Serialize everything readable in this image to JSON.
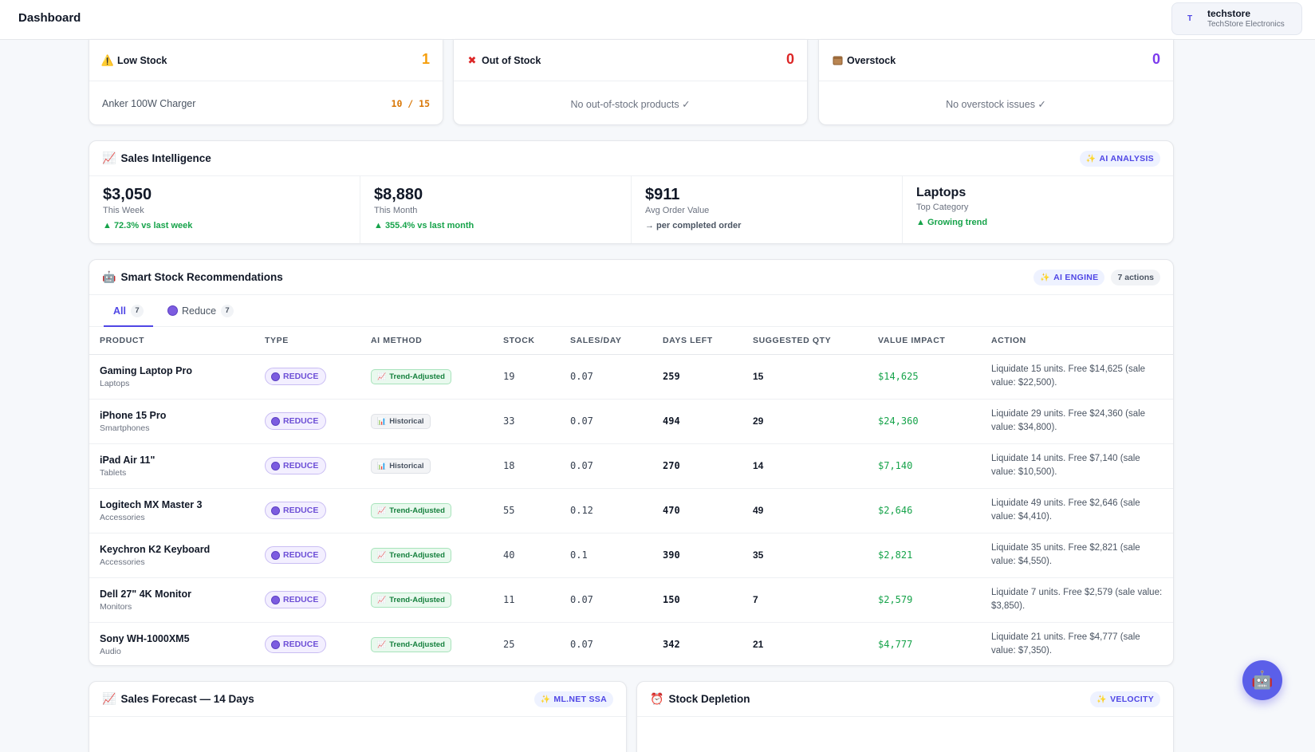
{
  "header": {
    "title": "Dashboard",
    "account": {
      "initial": "T",
      "name": "techstore",
      "org": "TechStore Electronics"
    }
  },
  "alerts": {
    "low_stock": {
      "icon": "warning-icon",
      "label": "Low Stock",
      "count": "1",
      "item_name": "Anker 100W Charger",
      "item_ratio": "10 / 15",
      "color": "#f59e0b"
    },
    "out_of_stock": {
      "icon": "cross-icon",
      "label": "Out of Stock",
      "count": "0",
      "empty_text": "No out-of-stock products ✓",
      "color": "#dc2626"
    },
    "overstock": {
      "icon": "box-icon",
      "label": "Overstock",
      "count": "0",
      "empty_text": "No overstock issues ✓",
      "color": "#7c3aed"
    }
  },
  "sales_intel": {
    "title": "Sales Intelligence",
    "badge": "AI ANALYSIS",
    "kpis": [
      {
        "value": "$3,050",
        "label": "This Week",
        "trend": "▲ 72.3% vs last week"
      },
      {
        "value": "$8,880",
        "label": "This Month",
        "trend": "▲ 355.4% vs last month"
      },
      {
        "value": "$911",
        "label": "Avg Order Value",
        "trend": "→ per completed order"
      },
      {
        "value": "Laptops",
        "label": "Top Category",
        "trend": "▲ Growing trend"
      }
    ]
  },
  "recommendations": {
    "title": "Smart Stock Recommendations",
    "badge_engine": "AI ENGINE",
    "badge_actions": "7 actions",
    "tabs": [
      {
        "label": "All",
        "count": "7"
      },
      {
        "label": "Reduce",
        "count": "7"
      }
    ],
    "columns": [
      "PRODUCT",
      "TYPE",
      "AI METHOD",
      "STOCK",
      "SALES/DAY",
      "DAYS LEFT",
      "SUGGESTED QTY",
      "VALUE IMPACT",
      "ACTION"
    ],
    "rows": [
      {
        "name": "Gaming Laptop Pro",
        "category": "Laptops",
        "type": "REDUCE",
        "method": "Trend-Adjusted",
        "method_kind": "trend",
        "stock": "19",
        "sales_day": "0.07",
        "days_left": "259",
        "qty": "15",
        "impact": "$14,625",
        "action": "Liquidate 15 units. Free $14,625 (sale value: $22,500)."
      },
      {
        "name": "iPhone 15 Pro",
        "category": "Smartphones",
        "type": "REDUCE",
        "method": "Historical",
        "method_kind": "hist",
        "stock": "33",
        "sales_day": "0.07",
        "days_left": "494",
        "qty": "29",
        "impact": "$24,360",
        "action": "Liquidate 29 units. Free $24,360 (sale value: $34,800)."
      },
      {
        "name": "iPad Air 11\"",
        "category": "Tablets",
        "type": "REDUCE",
        "method": "Historical",
        "method_kind": "hist",
        "stock": "18",
        "sales_day": "0.07",
        "days_left": "270",
        "qty": "14",
        "impact": "$7,140",
        "action": "Liquidate 14 units. Free $7,140 (sale value: $10,500)."
      },
      {
        "name": "Logitech MX Master 3",
        "category": "Accessories",
        "type": "REDUCE",
        "method": "Trend-Adjusted",
        "method_kind": "trend",
        "stock": "55",
        "sales_day": "0.12",
        "days_left": "470",
        "qty": "49",
        "impact": "$2,646",
        "action": "Liquidate 49 units. Free $2,646 (sale value: $4,410)."
      },
      {
        "name": "Keychron K2 Keyboard",
        "category": "Accessories",
        "type": "REDUCE",
        "method": "Trend-Adjusted",
        "method_kind": "trend",
        "stock": "40",
        "sales_day": "0.1",
        "days_left": "390",
        "qty": "35",
        "impact": "$2,821",
        "action": "Liquidate 35 units. Free $2,821 (sale value: $4,550)."
      },
      {
        "name": "Dell 27\" 4K Monitor",
        "category": "Monitors",
        "type": "REDUCE",
        "method": "Trend-Adjusted",
        "method_kind": "trend",
        "stock": "11",
        "sales_day": "0.07",
        "days_left": "150",
        "qty": "7",
        "impact": "$2,579",
        "action": "Liquidate 7 units. Free $2,579 (sale value: $3,850)."
      },
      {
        "name": "Sony WH-1000XM5",
        "category": "Audio",
        "type": "REDUCE",
        "method": "Trend-Adjusted",
        "method_kind": "trend",
        "stock": "25",
        "sales_day": "0.07",
        "days_left": "342",
        "qty": "21",
        "impact": "$4,777",
        "action": "Liquidate 21 units. Free $4,777 (sale value: $7,350)."
      }
    ]
  },
  "forecast": {
    "title": "Sales Forecast — 14 Days",
    "badge": "ML.NET SSA"
  },
  "depletion": {
    "title": "Stock Depletion",
    "badge": "VELOCITY"
  },
  "icons": {
    "fab": "robot-icon",
    "sparkle": "sparkle-icon",
    "chart": "chart-up-icon",
    "alarm": "alarm-clock-icon"
  }
}
